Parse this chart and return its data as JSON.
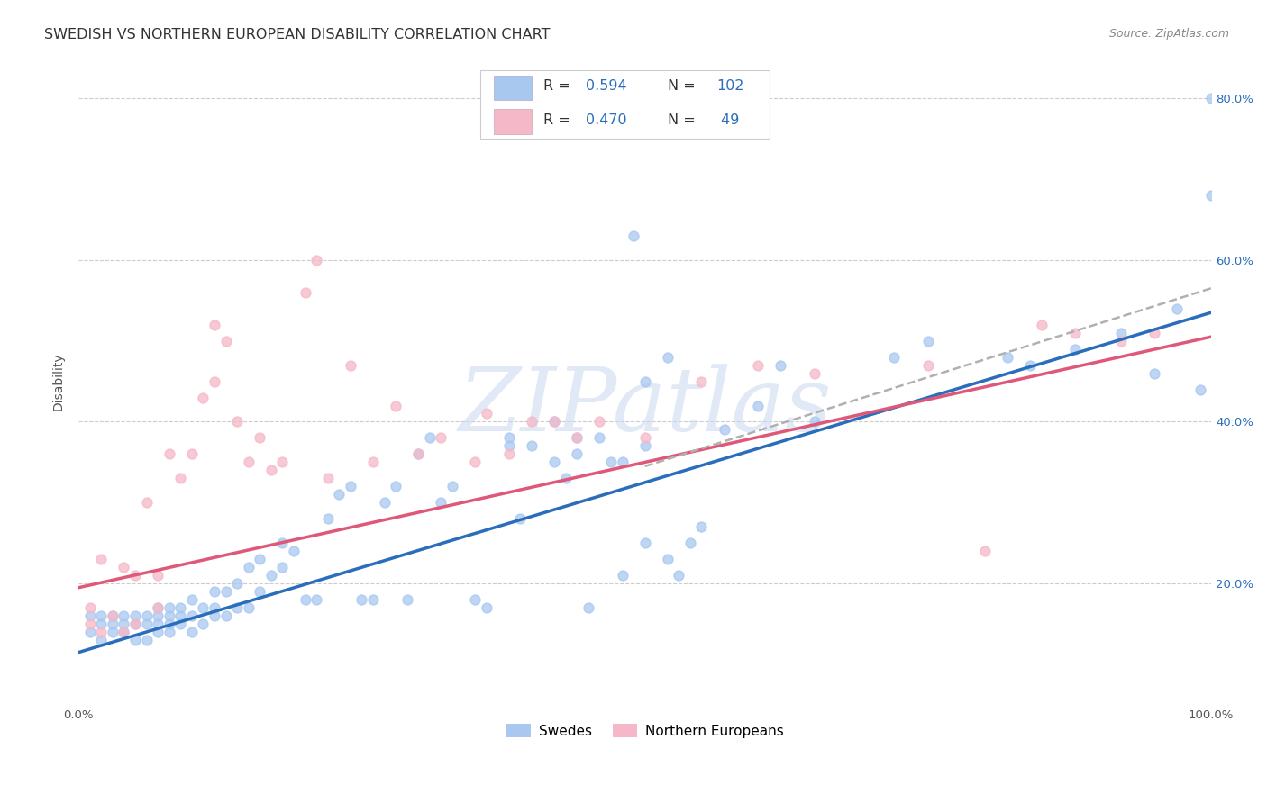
{
  "title": "SWEDISH VS NORTHERN EUROPEAN DISABILITY CORRELATION CHART",
  "source": "Source: ZipAtlas.com",
  "ylabel": "Disability",
  "xlim": [
    0,
    1.0
  ],
  "ylim": [
    0.05,
    0.85
  ],
  "ytick_positions": [
    0.2,
    0.4,
    0.6,
    0.8
  ],
  "ytick_labels": [
    "20.0%",
    "40.0%",
    "60.0%",
    "80.0%"
  ],
  "blue_color": "#a8c8f0",
  "pink_color": "#f5b8c8",
  "blue_line_color": "#2a6ebb",
  "pink_line_color": "#e05878",
  "dashed_line_color": "#b0b0b0",
  "watermark_text": "ZIPatlas",
  "legend_label1": "Swedes",
  "legend_label2": "Northern Europeans",
  "title_fontsize": 11.5,
  "axis_label_fontsize": 10,
  "tick_fontsize": 9.5,
  "marker_size": 60,
  "marker_alpha": 0.75,
  "blue_line_start_x": 0.0,
  "blue_line_start_y": 0.115,
  "blue_line_end_x": 1.0,
  "blue_line_end_y": 0.535,
  "pink_line_start_x": 0.0,
  "pink_line_start_y": 0.195,
  "pink_line_end_x": 1.0,
  "pink_line_end_y": 0.505,
  "dashed_line_start_x": 0.5,
  "dashed_line_start_y": 0.345,
  "dashed_line_end_x": 1.0,
  "dashed_line_end_y": 0.565,
  "grid_color": "#cccccc",
  "background_color": "#ffffff",
  "blue_scatter_x": [
    0.01,
    0.01,
    0.02,
    0.02,
    0.02,
    0.03,
    0.03,
    0.03,
    0.04,
    0.04,
    0.04,
    0.05,
    0.05,
    0.05,
    0.06,
    0.06,
    0.06,
    0.07,
    0.07,
    0.07,
    0.07,
    0.08,
    0.08,
    0.08,
    0.08,
    0.09,
    0.09,
    0.09,
    0.1,
    0.1,
    0.1,
    0.11,
    0.11,
    0.12,
    0.12,
    0.12,
    0.13,
    0.13,
    0.14,
    0.14,
    0.15,
    0.15,
    0.16,
    0.16,
    0.17,
    0.18,
    0.18,
    0.19,
    0.2,
    0.21,
    0.22,
    0.23,
    0.24,
    0.25,
    0.26,
    0.27,
    0.28,
    0.29,
    0.3,
    0.31,
    0.32,
    0.33,
    0.35,
    0.36,
    0.38,
    0.39,
    0.4,
    0.42,
    0.43,
    0.44,
    0.45,
    0.46,
    0.47,
    0.48,
    0.49,
    0.5,
    0.5,
    0.52,
    0.53,
    0.54,
    0.55,
    0.57,
    0.6,
    0.62,
    0.65,
    0.72,
    0.75,
    0.82,
    0.84,
    0.88,
    0.92,
    0.95,
    0.97,
    0.99,
    1.0,
    1.0,
    0.38,
    0.42,
    0.48,
    0.5,
    0.44,
    0.52
  ],
  "blue_scatter_y": [
    0.14,
    0.16,
    0.13,
    0.15,
    0.16,
    0.14,
    0.15,
    0.16,
    0.14,
    0.15,
    0.16,
    0.13,
    0.15,
    0.16,
    0.13,
    0.15,
    0.16,
    0.14,
    0.15,
    0.16,
    0.17,
    0.14,
    0.15,
    0.16,
    0.17,
    0.15,
    0.16,
    0.17,
    0.14,
    0.16,
    0.18,
    0.15,
    0.17,
    0.16,
    0.17,
    0.19,
    0.16,
    0.19,
    0.17,
    0.2,
    0.17,
    0.22,
    0.19,
    0.23,
    0.21,
    0.22,
    0.25,
    0.24,
    0.18,
    0.18,
    0.28,
    0.31,
    0.32,
    0.18,
    0.18,
    0.3,
    0.32,
    0.18,
    0.36,
    0.38,
    0.3,
    0.32,
    0.18,
    0.17,
    0.37,
    0.28,
    0.37,
    0.35,
    0.33,
    0.38,
    0.17,
    0.38,
    0.35,
    0.21,
    0.63,
    0.37,
    0.25,
    0.23,
    0.21,
    0.25,
    0.27,
    0.39,
    0.42,
    0.47,
    0.4,
    0.48,
    0.5,
    0.48,
    0.47,
    0.49,
    0.51,
    0.46,
    0.54,
    0.44,
    0.8,
    0.68,
    0.38,
    0.4,
    0.35,
    0.45,
    0.36,
    0.48
  ],
  "pink_scatter_x": [
    0.01,
    0.01,
    0.02,
    0.02,
    0.03,
    0.04,
    0.04,
    0.05,
    0.05,
    0.06,
    0.07,
    0.07,
    0.08,
    0.09,
    0.1,
    0.11,
    0.12,
    0.13,
    0.14,
    0.15,
    0.16,
    0.17,
    0.18,
    0.2,
    0.21,
    0.22,
    0.24,
    0.26,
    0.28,
    0.3,
    0.32,
    0.35,
    0.36,
    0.38,
    0.4,
    0.42,
    0.44,
    0.46,
    0.5,
    0.55,
    0.6,
    0.65,
    0.75,
    0.8,
    0.85,
    0.88,
    0.92,
    0.95,
    0.12
  ],
  "pink_scatter_y": [
    0.15,
    0.17,
    0.14,
    0.23,
    0.16,
    0.14,
    0.22,
    0.15,
    0.21,
    0.3,
    0.21,
    0.17,
    0.36,
    0.33,
    0.36,
    0.43,
    0.52,
    0.5,
    0.4,
    0.35,
    0.38,
    0.34,
    0.35,
    0.56,
    0.6,
    0.33,
    0.47,
    0.35,
    0.42,
    0.36,
    0.38,
    0.35,
    0.41,
    0.36,
    0.4,
    0.4,
    0.38,
    0.4,
    0.38,
    0.45,
    0.47,
    0.46,
    0.47,
    0.24,
    0.52,
    0.51,
    0.5,
    0.51,
    0.45
  ]
}
